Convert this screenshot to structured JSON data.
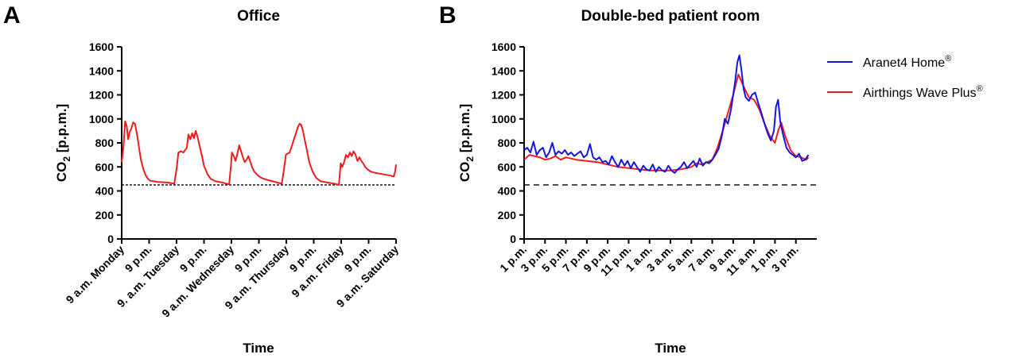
{
  "colors": {
    "axis": "#000000",
    "office_line": "#ee1c1c",
    "aranet": "#1515e0",
    "airthings": "#ee1c1c",
    "reference": "#000000"
  },
  "chart_data": [
    {
      "panel_letter": "A",
      "type": "line",
      "title": "Office",
      "xlabel": "Time",
      "ylabel_main": "CO",
      "ylabel_sub": "2",
      "ylabel_unit": " [p.p.m.]",
      "ylim": [
        0,
        1600
      ],
      "yticks": [
        0,
        200,
        400,
        600,
        800,
        1000,
        1200,
        1400,
        1600
      ],
      "xlim": [
        0,
        120
      ],
      "x_unit": "hours since 9 a.m. Monday",
      "xticks": [
        {
          "x": 0,
          "label": "9 a.m. Monday"
        },
        {
          "x": 12,
          "label": "9 p.m."
        },
        {
          "x": 24,
          "label": "9. a.m. Tuesday"
        },
        {
          "x": 36,
          "label": "9 p.m."
        },
        {
          "x": 48,
          "label": "9 a.m. Wednesday"
        },
        {
          "x": 60,
          "label": "9 p.m."
        },
        {
          "x": 72,
          "label": "9 a.m. Thursday"
        },
        {
          "x": 84,
          "label": "9 p.m."
        },
        {
          "x": 96,
          "label": "9 a.m. Friday"
        },
        {
          "x": 108,
          "label": "9 p.m."
        },
        {
          "x": 120,
          "label": "9 a.m. Saturday"
        }
      ],
      "reference_line": 450,
      "series": [
        {
          "color": "#ee1c1c",
          "x": [
            0,
            0.8,
            1.5,
            2.2,
            2.8,
            3.5,
            4.2,
            5,
            5.8,
            6.8,
            7.6,
            8.4,
            9.5,
            10.5,
            11.5,
            12.5,
            14,
            16,
            20,
            23,
            24,
            24.8,
            25.8,
            27,
            28.5,
            29.2,
            30,
            30.8,
            31.6,
            32.4,
            33.2,
            34,
            35,
            36,
            37.5,
            39,
            41,
            44,
            47,
            47.8,
            48.2,
            49,
            49.8,
            50.6,
            51.4,
            52.2,
            53,
            53.8,
            54.6,
            55.4,
            56.3,
            57,
            58,
            59.5,
            61,
            63,
            65,
            68,
            70,
            71,
            71.8,
            72.5,
            73.5,
            74.5,
            75.5,
            76.2,
            77,
            77.8,
            78.5,
            79.3,
            80,
            81,
            82,
            83.5,
            85,
            87,
            90,
            93,
            95,
            95.8,
            96.5,
            97.3,
            98.1,
            99,
            99.8,
            100.6,
            101.4,
            102.3,
            103.1,
            104,
            104.8,
            105.6,
            106.5,
            107.5,
            109,
            111,
            114,
            117,
            119,
            119.6,
            120
          ],
          "y": [
            640,
            770,
            980,
            940,
            830,
            890,
            920,
            970,
            960,
            860,
            760,
            660,
            580,
            530,
            500,
            485,
            480,
            475,
            470,
            460,
            580,
            720,
            730,
            720,
            760,
            870,
            830,
            880,
            840,
            900,
            850,
            780,
            700,
            610,
            540,
            500,
            480,
            470,
            455,
            610,
            720,
            690,
            650,
            710,
            780,
            730,
            680,
            640,
            660,
            690,
            640,
            600,
            560,
            530,
            510,
            495,
            485,
            470,
            460,
            580,
            700,
            710,
            720,
            780,
            840,
            880,
            930,
            960,
            950,
            900,
            830,
            740,
            640,
            560,
            510,
            480,
            470,
            460,
            450,
            630,
            600,
            640,
            700,
            680,
            720,
            690,
            730,
            700,
            650,
            680,
            650,
            630,
            600,
            580,
            560,
            550,
            540,
            530,
            520,
            560,
            620
          ]
        }
      ]
    },
    {
      "panel_letter": "B",
      "type": "line",
      "title": "Double-bed patient room",
      "xlabel": "Time",
      "ylabel_main": "CO",
      "ylabel_sub": "2",
      "ylabel_unit": " [p.p.m.]",
      "ylim": [
        0,
        1600
      ],
      "yticks": [
        0,
        200,
        400,
        600,
        800,
        1000,
        1200,
        1400,
        1600
      ],
      "xlim": [
        0,
        28
      ],
      "x_unit": "hours since 1 p.m.",
      "xticks": [
        {
          "x": 0,
          "label": "1 p.m."
        },
        {
          "x": 2,
          "label": "3 p.m."
        },
        {
          "x": 4,
          "label": "5 p.m."
        },
        {
          "x": 6,
          "label": "7 p.m."
        },
        {
          "x": 8,
          "label": "9 p.m."
        },
        {
          "x": 10,
          "label": "11 p.m."
        },
        {
          "x": 12,
          "label": "1 a.m."
        },
        {
          "x": 14,
          "label": "3 a.m."
        },
        {
          "x": 16,
          "label": "5 a.m."
        },
        {
          "x": 18,
          "label": "7 a.m."
        },
        {
          "x": 20,
          "label": "9 a.m."
        },
        {
          "x": 22,
          "label": "11 a.m."
        },
        {
          "x": 24,
          "label": "1 p.m."
        },
        {
          "x": 26,
          "label": "3 p.m."
        }
      ],
      "reference_line": 450,
      "legend_position": "right",
      "series": [
        {
          "name": "Aranet4 Home",
          "name_sup": "®",
          "color": "#1515e0",
          "x": [
            0,
            0.3,
            0.6,
            0.9,
            1.2,
            1.5,
            1.8,
            2.1,
            2.4,
            2.7,
            3,
            3.3,
            3.6,
            3.9,
            4.2,
            4.5,
            4.8,
            5.1,
            5.4,
            5.7,
            6,
            6.3,
            6.6,
            6.9,
            7.2,
            7.5,
            7.8,
            8.1,
            8.4,
            8.7,
            9,
            9.3,
            9.6,
            9.9,
            10.2,
            10.5,
            10.8,
            11.1,
            11.4,
            11.7,
            12,
            12.3,
            12.6,
            12.9,
            13.2,
            13.5,
            13.8,
            14.1,
            14.4,
            14.7,
            15,
            15.3,
            15.6,
            15.9,
            16.2,
            16.5,
            16.8,
            17.1,
            17.4,
            17.7,
            18,
            18.3,
            18.6,
            18.9,
            19.2,
            19.5,
            19.8,
            20,
            20.2,
            20.4,
            20.6,
            20.8,
            21,
            21.2,
            21.5,
            21.8,
            22.1,
            22.4,
            22.7,
            23,
            23.3,
            23.6,
            23.9,
            24.1,
            24.3,
            24.5,
            24.8,
            25.1,
            25.4,
            25.7,
            26,
            26.3,
            26.6,
            26.9,
            27.2
          ],
          "y": [
            740,
            760,
            720,
            810,
            700,
            740,
            760,
            680,
            720,
            800,
            700,
            730,
            710,
            740,
            700,
            720,
            690,
            710,
            730,
            680,
            700,
            790,
            680,
            660,
            680,
            640,
            650,
            620,
            690,
            640,
            600,
            660,
            610,
            650,
            590,
            640,
            600,
            560,
            610,
            580,
            570,
            620,
            560,
            600,
            570,
            560,
            610,
            570,
            550,
            580,
            600,
            640,
            590,
            620,
            650,
            600,
            670,
            610,
            640,
            630,
            660,
            700,
            750,
            850,
            1000,
            960,
            1080,
            1200,
            1320,
            1470,
            1530,
            1400,
            1250,
            1180,
            1150,
            1200,
            1220,
            1130,
            1050,
            960,
            880,
            820,
            900,
            1100,
            1160,
            980,
            860,
            760,
            720,
            700,
            680,
            710,
            650,
            660,
            700
          ]
        },
        {
          "name": "Airthings Wave Plus",
          "name_sup": "®",
          "color": "#ee1c1c",
          "x": [
            0,
            0.5,
            1,
            1.5,
            2,
            2.5,
            3,
            3.5,
            4,
            5,
            6,
            7,
            8,
            9,
            10,
            11,
            12,
            13,
            14,
            15,
            16,
            16.5,
            17,
            18,
            18.5,
            19,
            19.5,
            20,
            20.5,
            21,
            21.5,
            22,
            22.5,
            23,
            23.5,
            24,
            24.3,
            24.6,
            25,
            25.5,
            26,
            26.5,
            27,
            27.2
          ],
          "y": [
            660,
            700,
            690,
            680,
            660,
            670,
            690,
            660,
            680,
            660,
            650,
            640,
            620,
            600,
            590,
            580,
            570,
            570,
            570,
            580,
            600,
            630,
            620,
            660,
            760,
            900,
            1050,
            1200,
            1370,
            1270,
            1180,
            1160,
            1080,
            960,
            860,
            800,
            900,
            970,
            850,
            740,
            690,
            680,
            660,
            680
          ]
        }
      ]
    }
  ]
}
